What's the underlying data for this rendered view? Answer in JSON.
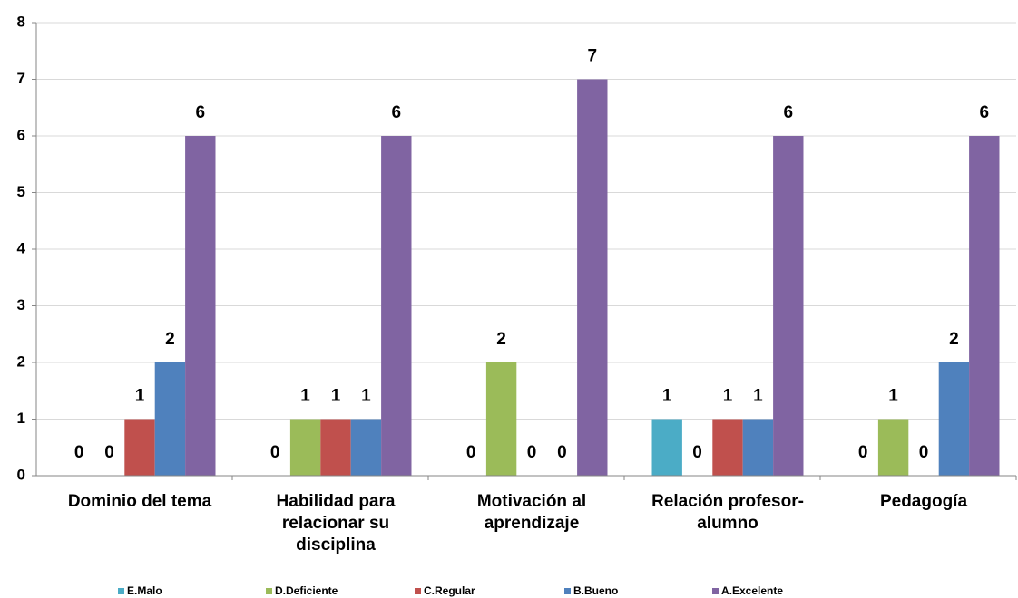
{
  "chart_data": {
    "type": "bar",
    "categories": [
      "Dominio del tema",
      "Habilidad para relacionar su disciplina",
      "Motivación al aprendizaje",
      "Relación profesor-alumno",
      "Pedagogía"
    ],
    "series": [
      {
        "name": "E.Malo",
        "color": "#4bacc6",
        "values": [
          0,
          0,
          0,
          1,
          0
        ]
      },
      {
        "name": "D.Deficiente",
        "color": "#9bbb59",
        "values": [
          0,
          1,
          2,
          0,
          1
        ]
      },
      {
        "name": "C.Regular",
        "color": "#c0504d",
        "values": [
          1,
          1,
          0,
          1,
          0
        ]
      },
      {
        "name": "B.Bueno",
        "color": "#4f81bd",
        "values": [
          2,
          1,
          0,
          1,
          2
        ]
      },
      {
        "name": "A.Excelente",
        "color": "#8064a2",
        "values": [
          6,
          6,
          7,
          6,
          6
        ]
      }
    ],
    "ylim": [
      0,
      8
    ],
    "yticks": [
      0,
      1,
      2,
      3,
      4,
      5,
      6,
      7,
      8
    ],
    "grid": true,
    "legend": "bottom"
  }
}
